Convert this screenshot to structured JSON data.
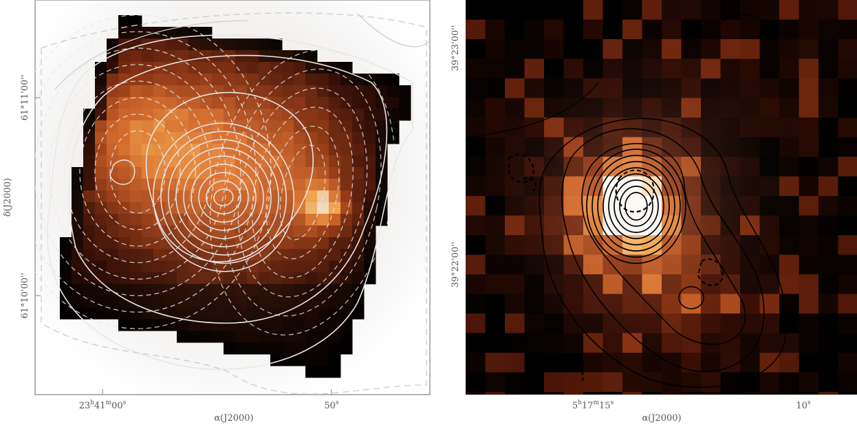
{
  "panels": [
    {
      "id": "left",
      "xlabel": "α(J2000)",
      "ylabel": "δ(J2000)",
      "x_ticks": [
        {
          "pos": "23h41m00s",
          "h": "23",
          "m": "41",
          "s": "00"
        },
        {
          "pos": "50s",
          "s": "50"
        }
      ],
      "y_ticks": [
        {
          "deg": "61°",
          "arcmin": "11'",
          "arcsec": "00''"
        },
        {
          "deg": "61°",
          "arcmin": "10'",
          "arcsec": "00''"
        }
      ],
      "colormap": "black-red-orange-white",
      "contour_color": "#e8e8e8"
    },
    {
      "id": "right",
      "xlabel": "α(J2000)",
      "ylabel": "",
      "x_ticks": [
        {
          "pos": "5h17m15s",
          "h": "5",
          "m": "17",
          "s": "15"
        },
        {
          "pos": "10s",
          "s": "10"
        }
      ],
      "y_ticks": [
        {
          "deg": "39°",
          "arcmin": "23'",
          "arcsec": "00''"
        },
        {
          "deg": "39°",
          "arcmin": "22'",
          "arcsec": "00''"
        }
      ],
      "colormap": "black-red-orange-white",
      "contour_color": "#000000"
    }
  ],
  "chart_data": [
    {
      "type": "heatmap",
      "title": "",
      "xlabel": "α(J2000)",
      "ylabel": "δ(J2000)",
      "x_tick_labels": [
        "23h41m00s",
        "50s"
      ],
      "y_tick_labels": [
        "61°11'00''",
        "61°10'00''"
      ],
      "features": [
        "peak near centre",
        "secondary bright peak near 50s",
        "solid and dashed contours"
      ]
    },
    {
      "type": "heatmap",
      "title": "",
      "xlabel": "α(J2000)",
      "ylabel": "",
      "x_tick_labels": [
        "5h17m15s",
        "10s"
      ],
      "y_tick_labels": [
        "39°23'00''",
        "39°22'00''"
      ],
      "features": [
        "compact bright peak",
        "secondary contour peak to the south-east",
        "solid and dashed contours"
      ]
    }
  ]
}
